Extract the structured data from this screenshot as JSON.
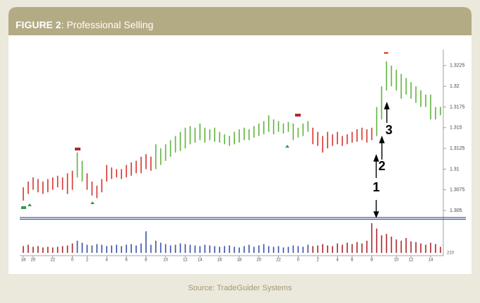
{
  "header": {
    "figure": "FIGURE 2",
    "title": ": Professional Selling"
  },
  "source": "Source: TradeGuider Systems",
  "chart_data": [
    {
      "type": "ohlc",
      "high": [
        1.3078,
        1.3085,
        1.309,
        1.3088,
        1.3085,
        1.3088,
        1.309,
        1.3092,
        1.309,
        1.3095,
        1.3098,
        1.312,
        1.311,
        1.3095,
        1.3085,
        1.308,
        1.3088,
        1.3105,
        1.3102,
        1.31,
        1.31,
        1.3105,
        1.3108,
        1.311,
        1.3115,
        1.3118,
        1.3115,
        1.313,
        1.3125,
        1.313,
        1.3135,
        1.314,
        1.3145,
        1.315,
        1.3152,
        1.315,
        1.3155,
        1.315,
        1.3148,
        1.315,
        1.3145,
        1.3142,
        1.314,
        1.3145,
        1.3148,
        1.315,
        1.3148,
        1.3152,
        1.3155,
        1.3158,
        1.3165,
        1.316,
        1.3158,
        1.3155,
        1.3157,
        1.3155,
        1.315,
        1.3155,
        1.3158,
        1.315,
        1.3145,
        1.314,
        1.3145,
        1.3142,
        1.3145,
        1.314,
        1.3142,
        1.3145,
        1.3148,
        1.315,
        1.3148,
        1.315,
        1.3175,
        1.32,
        1.323,
        1.3225,
        1.322,
        1.3215,
        1.321,
        1.3205,
        1.32,
        1.3195,
        1.319,
        1.319,
        1.3175,
        1.3175
      ],
      "low": [
        1.3062,
        1.307,
        1.3075,
        1.3072,
        1.307,
        1.3072,
        1.3075,
        1.3078,
        1.3075,
        1.307,
        1.3075,
        1.309,
        1.3085,
        1.3075,
        1.3068,
        1.3065,
        1.3072,
        1.3085,
        1.3088,
        1.309,
        1.3088,
        1.309,
        1.3092,
        1.3095,
        1.3095,
        1.31,
        1.3098,
        1.31,
        1.3105,
        1.311,
        1.3115,
        1.312,
        1.3122,
        1.3125,
        1.313,
        1.3132,
        1.3135,
        1.3132,
        1.3135,
        1.3133,
        1.3132,
        1.313,
        1.3128,
        1.313,
        1.3132,
        1.3135,
        1.3135,
        1.3138,
        1.314,
        1.3142,
        1.3145,
        1.3142,
        1.3145,
        1.3143,
        1.3145,
        1.3135,
        1.3138,
        1.314,
        1.3145,
        1.313,
        1.3128,
        1.312,
        1.3125,
        1.3128,
        1.313,
        1.3128,
        1.313,
        1.3132,
        1.3133,
        1.3135,
        1.3132,
        1.3135,
        1.314,
        1.316,
        1.3195,
        1.32,
        1.3195,
        1.3185,
        1.319,
        1.3185,
        1.318,
        1.3175,
        1.3175,
        1.316,
        1.316,
        1.3165
      ],
      "colors": [
        "#d6342c",
        "#d6342c",
        "#d6342c",
        "#d6342c",
        "#d6342c",
        "#d6342c",
        "#d6342c",
        "#d6342c",
        "#d6342c",
        "#d6342c",
        "#d6342c",
        "#5fb33d",
        "#5fb33d",
        "#d6342c",
        "#d6342c",
        "#d6342c",
        "#d6342c",
        "#d6342c",
        "#d6342c",
        "#d6342c",
        "#d6342c",
        "#d6342c",
        "#d6342c",
        "#d6342c",
        "#d6342c",
        "#d6342c",
        "#d6342c",
        "#5fb33d",
        "#5fb33d",
        "#5fb33d",
        "#5fb33d",
        "#5fb33d",
        "#5fb33d",
        "#5fb33d",
        "#5fb33d",
        "#5fb33d",
        "#5fb33d",
        "#5fb33d",
        "#5fb33d",
        "#5fb33d",
        "#5fb33d",
        "#5fb33d",
        "#5fb33d",
        "#5fb33d",
        "#5fb33d",
        "#5fb33d",
        "#5fb33d",
        "#5fb33d",
        "#5fb33d",
        "#5fb33d",
        "#5fb33d",
        "#5fb33d",
        "#5fb33d",
        "#5fb33d",
        "#5fb33d",
        "#5fb33d",
        "#5fb33d",
        "#5fb33d",
        "#5fb33d",
        "#d6342c",
        "#d6342c",
        "#d6342c",
        "#d6342c",
        "#d6342c",
        "#d6342c",
        "#d6342c",
        "#d6342c",
        "#d6342c",
        "#d6342c",
        "#d6342c",
        "#d6342c",
        "#d6342c",
        "#5fb33d",
        "#5fb33d",
        "#5fb33d",
        "#5fb33d",
        "#5fb33d",
        "#5fb33d",
        "#5fb33d",
        "#5fb33d",
        "#5fb33d",
        "#5fb33d",
        "#5fb33d",
        "#5fb33d",
        "#5fb33d",
        "#5fb33d"
      ],
      "ylim": [
        1.30415,
        1.32445
      ],
      "yticks": [
        1.305,
        1.3075,
        1.31,
        1.3125,
        1.315,
        1.3175,
        1.32,
        1.3225
      ],
      "annotations": [
        "1",
        "2",
        "3"
      ]
    },
    {
      "type": "volume",
      "categories": [
        "18",
        null,
        "20",
        null,
        null,
        null,
        "22",
        null,
        null,
        null,
        "0",
        null,
        null,
        "2",
        null,
        null,
        null,
        "4",
        null,
        null,
        null,
        "6",
        null,
        null,
        null,
        "8",
        null,
        null,
        null,
        "10",
        null,
        null,
        null,
        "12",
        null,
        null,
        "14",
        null,
        null,
        null,
        "16",
        null,
        null,
        null,
        "18",
        null,
        null,
        null,
        "20",
        null,
        null,
        null,
        "22",
        null,
        null,
        null,
        "0",
        null,
        null,
        null,
        "2",
        null,
        null,
        null,
        "4",
        null,
        null,
        "6",
        null,
        null,
        null,
        "8",
        null,
        null,
        null,
        null,
        "10",
        null,
        null,
        "12",
        null,
        null,
        null,
        "14",
        null,
        null
      ],
      "values": [
        10,
        12,
        9,
        10,
        8,
        9,
        8,
        9,
        10,
        11,
        14,
        18,
        15,
        12,
        11,
        13,
        12,
        10,
        11,
        12,
        10,
        12,
        13,
        11,
        14,
        32,
        12,
        18,
        15,
        13,
        11,
        12,
        14,
        13,
        12,
        11,
        10,
        12,
        11,
        10,
        9,
        10,
        11,
        9,
        8,
        10,
        12,
        9,
        11,
        13,
        10,
        9,
        10,
        8,
        9,
        11,
        10,
        9,
        12,
        10,
        11,
        13,
        11,
        10,
        14,
        12,
        15,
        13,
        16,
        14,
        18,
        44,
        36,
        26,
        28,
        24,
        20,
        18,
        22,
        17,
        16,
        14,
        12,
        15,
        13,
        9
      ],
      "colors": [
        "#a8242a",
        "#a8242a",
        "#a8242a",
        "#a8242a",
        "#a8242a",
        "#a8242a",
        "#a8242a",
        "#a8242a",
        "#a8242a",
        "#a8242a",
        "#a8242a",
        "#3a4fa8",
        "#3a4fa8",
        "#3a4fa8",
        "#3a4fa8",
        "#3a4fa8",
        "#3a4fa8",
        "#3a4fa8",
        "#3a4fa8",
        "#3a4fa8",
        "#3a4fa8",
        "#3a4fa8",
        "#3a4fa8",
        "#3a4fa8",
        "#3a4fa8",
        "#3a4fa8",
        "#3a4fa8",
        "#3a4fa8",
        "#3a4fa8",
        "#3a4fa8",
        "#3a4fa8",
        "#3a4fa8",
        "#3a4fa8",
        "#3a4fa8",
        "#3a4fa8",
        "#3a4fa8",
        "#3a4fa8",
        "#3a4fa8",
        "#3a4fa8",
        "#3a4fa8",
        "#3a4fa8",
        "#3a4fa8",
        "#3a4fa8",
        "#3a4fa8",
        "#3a4fa8",
        "#3a4fa8",
        "#3a4fa8",
        "#3a4fa8",
        "#3a4fa8",
        "#3a4fa8",
        "#3a4fa8",
        "#3a4fa8",
        "#3a4fa8",
        "#3a4fa8",
        "#3a4fa8",
        "#3a4fa8",
        "#3a4fa8",
        "#3a4fa8",
        "#3a4fa8",
        "#a8242a",
        "#a8242a",
        "#a8242a",
        "#a8242a",
        "#a8242a",
        "#a8242a",
        "#a8242a",
        "#a8242a",
        "#a8242a",
        "#a8242a",
        "#a8242a",
        "#a8242a",
        "#a8242a",
        "#a8242a",
        "#a8242a",
        "#a8242a",
        "#a8242a",
        "#a8242a",
        "#a8242a",
        "#a8242a",
        "#a8242a",
        "#a8242a",
        "#a8242a",
        "#a8242a",
        "#a8242a",
        "#a8242a",
        "#a8242a"
      ],
      "ylim": [
        0,
        45
      ],
      "axis_label": "210"
    }
  ]
}
